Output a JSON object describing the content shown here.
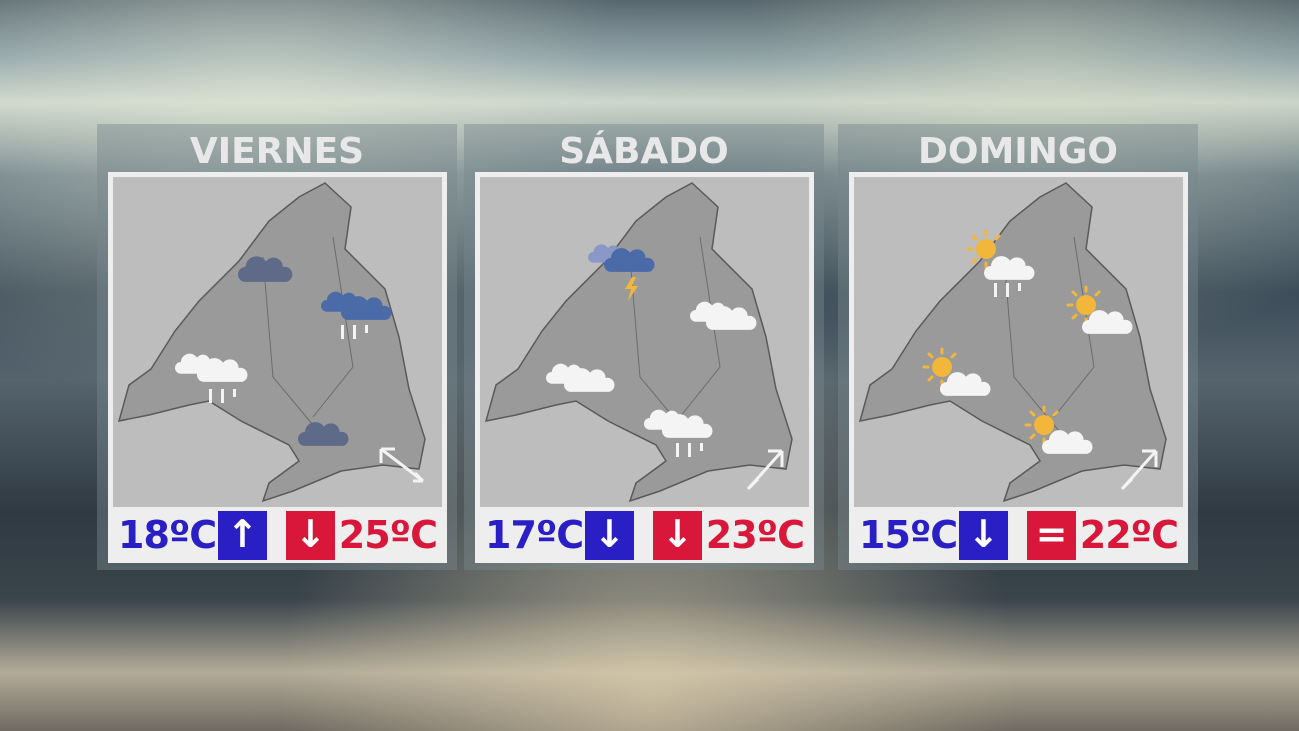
{
  "colors": {
    "min_temp": "#2a1fc4",
    "max_temp": "#d8173a",
    "trend_up": "#2a1fc4",
    "trend_down_min": "#2a1fc4",
    "trend_max": "#d8173a"
  },
  "days": [
    {
      "name": "VIERNES",
      "min": "18ºC",
      "min_trend": "↑",
      "max_trend": "↓",
      "max": "25ºC",
      "wind": "north-west",
      "icons": [
        "cloud-dark",
        "cloud-rain-blue",
        "cloud-rain-white",
        "cloud-dark"
      ]
    },
    {
      "name": "SÁBADO",
      "min": "17ºC",
      "min_trend": "↓",
      "max_trend": "↓",
      "max": "23ºC",
      "wind": "north-east",
      "icons": [
        "cloud-storm",
        "clouds-white",
        "clouds-white",
        "cloud-rain-white"
      ]
    },
    {
      "name": "DOMINGO",
      "min": "15ºC",
      "min_trend": "↓",
      "max_trend": "=",
      "max": "22ºC",
      "wind": "north-east",
      "icons": [
        "sun-cloud-rain",
        "sun-cloud",
        "sun-cloud",
        "sun-cloud"
      ]
    }
  ]
}
